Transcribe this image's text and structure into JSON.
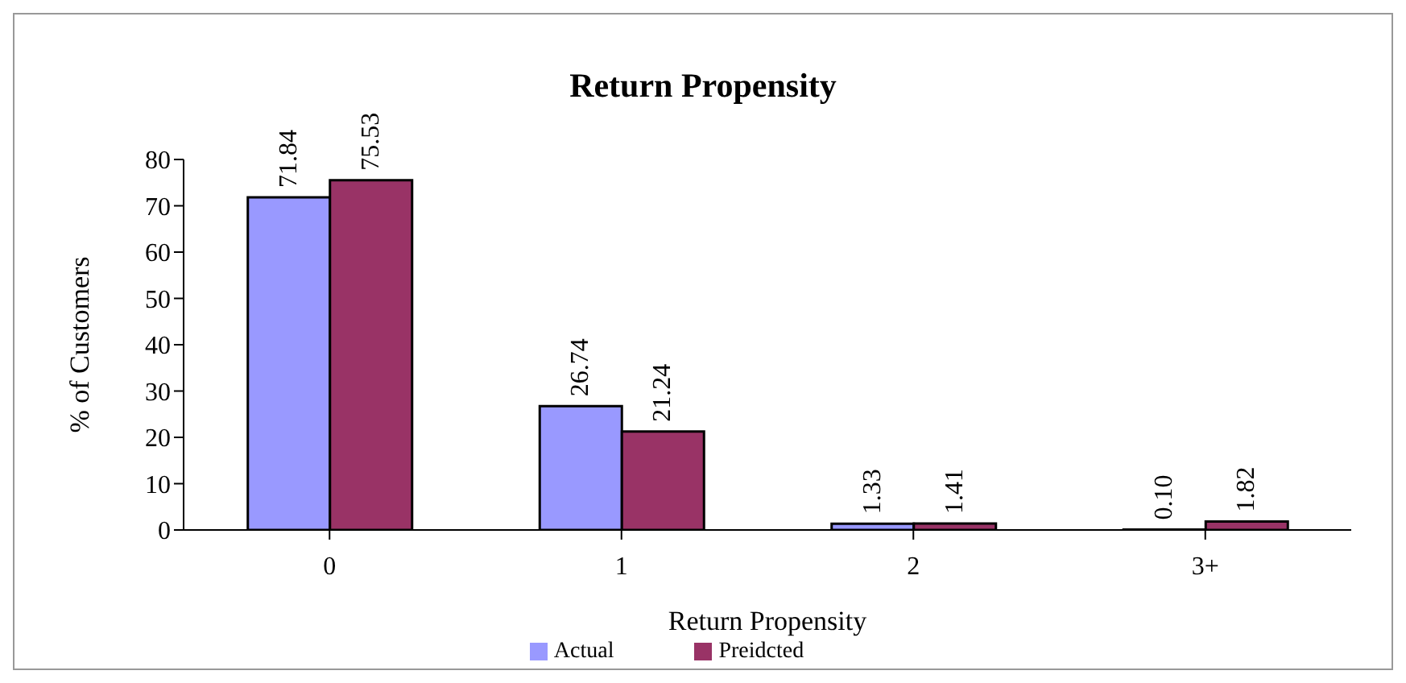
{
  "chart_data": {
    "type": "bar",
    "title": "Return Propensity",
    "xlabel": "Return Propensity",
    "ylabel": "% of Customers",
    "categories": [
      "0",
      "1",
      "2",
      "3+"
    ],
    "series": [
      {
        "name": "Actual",
        "color": "#9999ff",
        "values": [
          71.84,
          26.74,
          1.33,
          0.1
        ],
        "value_labels": [
          "71.84",
          "26.74",
          "1.33",
          "0.10"
        ]
      },
      {
        "name": "Preidcted",
        "color": "#993366",
        "values": [
          75.53,
          21.24,
          1.41,
          1.82
        ],
        "value_labels": [
          "75.53",
          "21.24",
          "1.41",
          "1.82"
        ]
      }
    ],
    "ylim": [
      0,
      80
    ],
    "yticks": [
      0,
      10,
      20,
      30,
      40,
      50,
      60,
      70,
      80
    ],
    "grid": false,
    "legend": "bottom"
  }
}
